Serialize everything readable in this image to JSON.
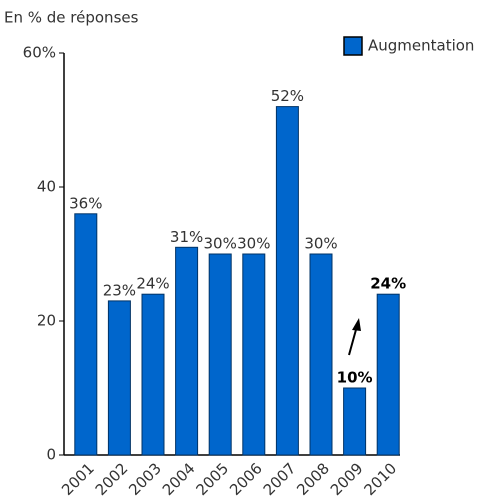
{
  "chart_data": {
    "type": "bar",
    "y_label": "En % de réponses",
    "categories": [
      "2001",
      "2002",
      "2003",
      "2004",
      "2005",
      "2006",
      "2007",
      "2008",
      "2009",
      "2010"
    ],
    "series": [
      {
        "name": "Augmentation",
        "color": "#0066cc",
        "values": [
          36,
          23,
          24,
          31,
          30,
          30,
          52,
          30,
          10,
          24
        ],
        "value_labels": [
          "36%",
          "23%",
          "24%",
          "31%",
          "30%",
          "30%",
          "52%",
          "30%",
          "10%",
          "24%"
        ]
      }
    ],
    "ylim": [
      0,
      60
    ],
    "yticks": [
      0,
      20,
      40,
      {
        "value": 60,
        "label": "60%"
      }
    ],
    "legend": "top-right"
  }
}
